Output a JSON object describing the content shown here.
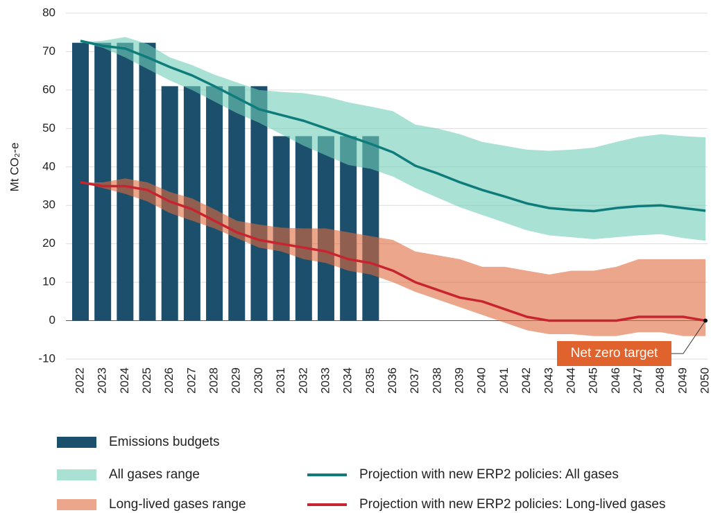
{
  "chart_data": {
    "type": "combo",
    "y_label": "Mt CO₂-e",
    "categories": [
      "2022",
      "2023",
      "2024",
      "2025",
      "2026",
      "2027",
      "2028",
      "2029",
      "2030",
      "2031",
      "2032",
      "2033",
      "2034",
      "2035",
      "2036",
      "2037",
      "2038",
      "2039",
      "2040",
      "2041",
      "2042",
      "2043",
      "2044",
      "2045",
      "2046",
      "2047",
      "2048",
      "2049",
      "2050"
    ],
    "ylim": [
      -10,
      80
    ],
    "yticks": [
      -10,
      0,
      10,
      20,
      30,
      40,
      50,
      60,
      70,
      80
    ],
    "grid": true,
    "series": [
      {
        "name": "Emissions budgets",
        "type": "bar",
        "color": "#1b4f6b",
        "values": [
          72.3,
          72.3,
          72.3,
          72.3,
          61,
          61,
          61,
          61,
          61,
          48,
          48,
          48,
          48,
          48,
          null,
          null,
          null,
          null,
          null,
          null,
          null,
          null,
          null,
          null,
          null,
          null,
          null,
          null,
          null
        ]
      },
      {
        "name": "All gases range",
        "type": "range",
        "color": "#6fcdb8",
        "high": [
          72.5,
          72.8,
          73.8,
          72,
          68.5,
          66.5,
          64,
          62,
          60,
          59.5,
          59.2,
          58.3,
          56.8,
          55.7,
          54.5,
          51,
          50,
          48.5,
          46.5,
          45.5,
          44.5,
          44.2,
          44.5,
          45,
          46.5,
          47.8,
          48.5,
          48,
          47.7
        ],
        "low": [
          72.5,
          71,
          68.5,
          65.5,
          62.5,
          60,
          57,
          54,
          51.5,
          48.5,
          45.5,
          43,
          40.5,
          39.5,
          37.5,
          34.5,
          32,
          29.5,
          27.5,
          25.5,
          23.5,
          22.2,
          21.7,
          21.2,
          21.7,
          22.2,
          22.5,
          21.5,
          20.8
        ]
      },
      {
        "name": "Long-lived gases range",
        "type": "range",
        "color": "#e06a3d",
        "high": [
          36,
          36,
          37,
          36,
          33.5,
          31.8,
          29,
          26,
          25,
          24.2,
          24,
          24,
          23,
          22,
          21,
          18,
          17,
          16,
          14,
          14,
          13,
          12,
          13,
          13,
          14,
          16,
          16,
          16,
          16
        ],
        "low": [
          36,
          34.5,
          33,
          31,
          28,
          26,
          24,
          21.5,
          19,
          18,
          16,
          15,
          13,
          12,
          10,
          7.5,
          5.5,
          3.5,
          1.5,
          -0.5,
          -2.5,
          -3.5,
          -3.5,
          -4,
          -4,
          -3,
          -3,
          -4,
          -4
        ]
      },
      {
        "name": "Projection with new ERP2 policies: All gases",
        "type": "line",
        "color": "#0e7c7b",
        "values": [
          72.8,
          71.5,
          70.8,
          68.5,
          66,
          63.8,
          61,
          58,
          55,
          53.5,
          52,
          50,
          48,
          46,
          43.8,
          40.3,
          38.3,
          36,
          34,
          32.3,
          30.5,
          29.3,
          28.8,
          28.5,
          29.3,
          29.8,
          30,
          29.3,
          28.6
        ]
      },
      {
        "name": "Projection with new ERP2 policies: Long-lived gases",
        "type": "line",
        "color": "#c8242f",
        "values": [
          36,
          35,
          35,
          34,
          31,
          29,
          26,
          23,
          21,
          20,
          19,
          18,
          16,
          15,
          13,
          10,
          8,
          6,
          5,
          3,
          1,
          0,
          0,
          0,
          0,
          1,
          1,
          1,
          0
        ]
      }
    ],
    "annotation": {
      "text": "Net zero target",
      "category_index": 28,
      "y": 0,
      "color": "#e0622d"
    }
  }
}
